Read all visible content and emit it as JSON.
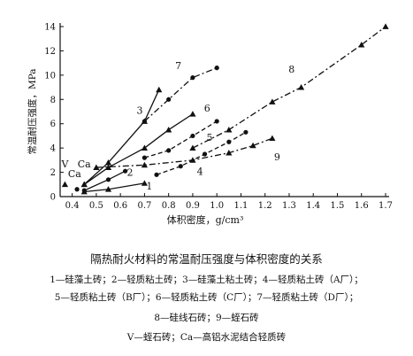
{
  "chart_data": {
    "type": "line",
    "ylabel": "常温耐压强度，MPa",
    "xlabel": "体积密度，g/cm³",
    "xlim": [
      0.35,
      1.7
    ],
    "ylim": [
      0,
      14
    ],
    "xticks": [
      "0.4",
      "0.5",
      "0.6",
      "0.7",
      "0.8",
      "0.9",
      "1.0",
      "1.1",
      "1.2",
      "1.3",
      "1.4",
      "1.5",
      "1.6",
      "1.7"
    ],
    "yticks": [
      "0",
      "2",
      "4",
      "6",
      "8",
      "10",
      "12",
      "14"
    ],
    "grid": false,
    "legend": "caption-below",
    "series": [
      {
        "name": "1",
        "marker": "triangle",
        "dash": "solid",
        "x": [
          0.45,
          0.55,
          0.7
        ],
        "y": [
          0.4,
          0.6,
          1.1
        ]
      },
      {
        "name": "2",
        "marker": "circle",
        "dash": "solid",
        "x": [
          0.45,
          0.55,
          0.62
        ],
        "y": [
          0.5,
          1.4,
          2.1
        ]
      },
      {
        "name": "3",
        "marker": "triangle",
        "dash": "solid",
        "x": [
          0.45,
          0.55,
          0.7,
          0.76
        ],
        "y": [
          1.0,
          2.8,
          6.2,
          8.8
        ]
      },
      {
        "name": "4",
        "marker": "circle",
        "dash": "dashed",
        "x": [
          0.75,
          0.85,
          0.95,
          1.05,
          1.12
        ],
        "y": [
          1.8,
          2.5,
          3.5,
          4.5,
          5.3
        ]
      },
      {
        "name": "5",
        "marker": "circle",
        "dash": "dashed",
        "x": [
          0.7,
          0.8,
          0.9,
          1.0
        ],
        "y": [
          3.2,
          3.8,
          5.0,
          6.2
        ]
      },
      {
        "name": "6",
        "marker": "triangle",
        "dash": "solid",
        "x": [
          0.45,
          0.55,
          0.7,
          0.8,
          0.9
        ],
        "y": [
          1.0,
          2.4,
          4.0,
          5.5,
          6.8
        ]
      },
      {
        "name": "7",
        "marker": "circle",
        "dash": "dashdot",
        "x": [
          0.7,
          0.8,
          0.9,
          1.0
        ],
        "y": [
          6.2,
          8.0,
          9.8,
          10.6
        ]
      },
      {
        "name": "8",
        "marker": "triangle",
        "dash": "dashdot",
        "x": [
          0.9,
          1.05,
          1.23,
          1.35,
          1.6,
          1.7
        ],
        "y": [
          4.0,
          5.5,
          7.8,
          9.0,
          12.5,
          14.0
        ]
      },
      {
        "name": "9",
        "marker": "triangle",
        "dash": "dashdot",
        "x": [
          0.5,
          0.7,
          0.9,
          1.05,
          1.15,
          1.23
        ],
        "y": [
          2.4,
          2.6,
          3.0,
          3.6,
          4.2,
          4.8
        ]
      },
      {
        "name": "V",
        "marker": "triangle",
        "dash": "none",
        "x": [
          0.37
        ],
        "y": [
          1.0
        ]
      },
      {
        "name": "Ca",
        "marker": "circle",
        "dash": "none",
        "x": [
          0.42
        ],
        "y": [
          0.6
        ]
      }
    ],
    "curve_labels": [
      {
        "text": "1",
        "x": 0.72,
        "y": 0.6
      },
      {
        "text": "2",
        "x": 0.64,
        "y": 1.7
      },
      {
        "text": "3",
        "x": 0.68,
        "y": 6.8
      },
      {
        "text": "4",
        "x": 0.93,
        "y": 1.8
      },
      {
        "text": "5",
        "x": 0.97,
        "y": 4.6
      },
      {
        "text": "6",
        "x": 0.96,
        "y": 7.0
      },
      {
        "text": "7",
        "x": 0.84,
        "y": 10.5
      },
      {
        "text": "8",
        "x": 1.31,
        "y": 10.2
      },
      {
        "text": "9",
        "x": 1.25,
        "y": 3.0
      },
      {
        "text": "V",
        "x": 0.37,
        "y": 2.4
      },
      {
        "text": "Ca",
        "x": 0.45,
        "y": 2.4
      },
      {
        "text": "Ca",
        "x": 0.41,
        "y": 1.6
      }
    ]
  },
  "caption": {
    "title": "隔热耐火材料的常温耐压强度与体积密度的关系",
    "line1": "1—硅藻土砖；2—轻质粘土砖；3—硅藻土粘土砖；4—轻质粘土砖（A厂）；",
    "line2": "5—轻质粘土砖（B厂）；6—轻质粘土砖（C厂）；7—轻质粘土砖（D厂）；",
    "line3": "8—硅线石砖；9—蛭石砖",
    "line4": "V—蛭石砖；Ca—高铝水泥结合轻质砖"
  }
}
